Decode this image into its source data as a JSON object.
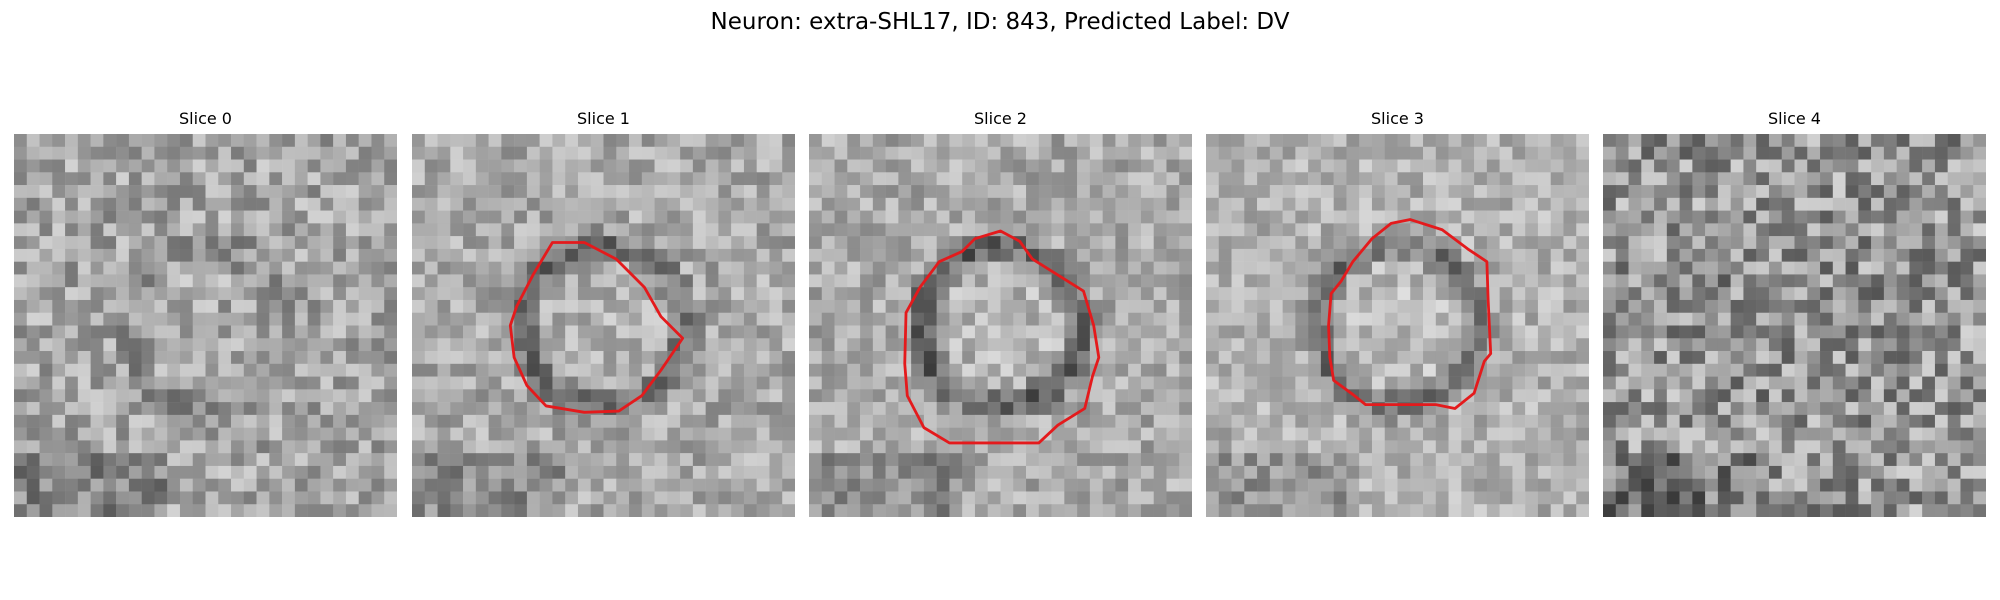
{
  "figure": {
    "title": "Neuron: extra-SHL17, ID: 843, Predicted Label: DV"
  },
  "colors": {
    "background": "#ffffff",
    "contour": "#e41a1c",
    "text": "#000000"
  },
  "image_grid_size": 30,
  "slices": [
    {
      "title": "Slice 0",
      "seed": 17,
      "has_contour": false,
      "ring": 0.35,
      "mean": 165,
      "noise": 46
    },
    {
      "title": "Slice 1",
      "seed": 29,
      "has_contour": true,
      "ring": 1.0,
      "mean": 170,
      "noise": 40,
      "contour": [
        [
          11,
          8.5
        ],
        [
          13.5,
          8.5
        ],
        [
          16,
          9.8
        ],
        [
          18.2,
          12
        ],
        [
          19.5,
          14.3
        ],
        [
          21.2,
          16
        ],
        [
          19.5,
          18.5
        ],
        [
          18,
          20.5
        ],
        [
          16.2,
          21.7
        ],
        [
          13.5,
          21.8
        ],
        [
          10.5,
          21.3
        ],
        [
          9,
          19.7
        ],
        [
          8,
          17.5
        ],
        [
          7.7,
          15
        ],
        [
          8.2,
          13.5
        ],
        [
          9.5,
          11
        ]
      ]
    },
    {
      "title": "Slice 2",
      "seed": 41,
      "has_contour": true,
      "ring": 1.25,
      "mean": 170,
      "noise": 38,
      "contour": [
        [
          13,
          8.2
        ],
        [
          15,
          7.6
        ],
        [
          16.5,
          8.4
        ],
        [
          17.5,
          9.8
        ],
        [
          21.5,
          12.3
        ],
        [
          22.3,
          15
        ],
        [
          22.7,
          17.5
        ],
        [
          22.2,
          19
        ],
        [
          21.6,
          21.5
        ],
        [
          19.5,
          22.8
        ],
        [
          18,
          24.2
        ],
        [
          14,
          24.2
        ],
        [
          11,
          24.2
        ],
        [
          9,
          23
        ],
        [
          7.7,
          20.5
        ],
        [
          7.5,
          18
        ],
        [
          7.6,
          14
        ],
        [
          8.7,
          12
        ],
        [
          10.2,
          10
        ],
        [
          12,
          9.2
        ]
      ]
    },
    {
      "title": "Slice 3",
      "seed": 53,
      "has_contour": true,
      "ring": 1.1,
      "mean": 178,
      "noise": 36,
      "contour": [
        [
          13,
          8.2
        ],
        [
          14.5,
          7
        ],
        [
          16,
          6.7
        ],
        [
          18.5,
          7.5
        ],
        [
          20.5,
          9
        ],
        [
          22,
          10
        ],
        [
          22.1,
          13
        ],
        [
          22.3,
          17.2
        ],
        [
          21.8,
          17.8
        ],
        [
          21,
          20.3
        ],
        [
          19.5,
          21.5
        ],
        [
          18,
          21.2
        ],
        [
          17.5,
          21.2
        ],
        [
          12.5,
          21.2
        ],
        [
          11.5,
          20.4
        ],
        [
          10,
          19.3
        ],
        [
          9.7,
          17.5
        ],
        [
          9.6,
          15
        ],
        [
          9.8,
          12.5
        ],
        [
          10.6,
          11.5
        ],
        [
          11.5,
          10
        ]
      ]
    },
    {
      "title": "Slice 4",
      "seed": 67,
      "has_contour": false,
      "ring": 0.1,
      "mean": 150,
      "noise": 62
    }
  ]
}
